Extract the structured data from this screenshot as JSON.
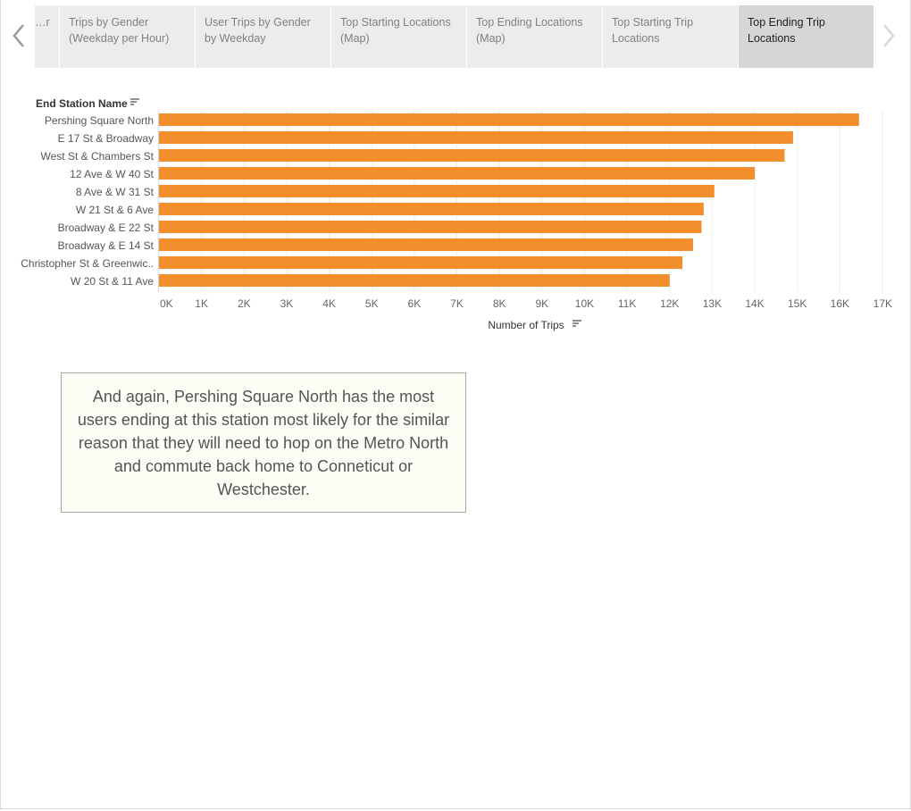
{
  "storypoints": {
    "tabs": [
      {
        "label": "…r",
        "selected": false
      },
      {
        "label": "Trips by Gender\n(Weekday per Hour)",
        "selected": false
      },
      {
        "label": "User Trips by Gender\nby Weekday",
        "selected": false
      },
      {
        "label": "Top Starting Locations\n(Map)",
        "selected": false
      },
      {
        "label": "Top Ending Locations\n(Map)",
        "selected": false
      },
      {
        "label": "Top Starting Trip\nLocations",
        "selected": false
      },
      {
        "label": "Top Ending Trip\nLocations",
        "selected": true
      }
    ],
    "prev_icon": "chevron-left-icon",
    "next_icon": "chevron-right-icon"
  },
  "chart_data": {
    "type": "bar",
    "orientation": "horizontal",
    "row_header": "End Station Name",
    "xlabel": "Number of Trips",
    "categories": [
      "Pershing Square North",
      "E 17 St & Broadway",
      "West St & Chambers St",
      "12 Ave & W 40 St",
      "8 Ave & W 31 St",
      "W 21 St & 6 Ave",
      "Broadway & E 22 St",
      "Broadway & E 14 St",
      "Christopher St & Greenwic..",
      "W 20 St & 11 Ave"
    ],
    "values": [
      16450,
      14900,
      14700,
      14000,
      13050,
      12800,
      12750,
      12550,
      12300,
      12000
    ],
    "xlim": [
      0,
      17000
    ],
    "xticks": [
      0,
      1000,
      2000,
      3000,
      4000,
      5000,
      6000,
      7000,
      8000,
      9000,
      10000,
      11000,
      12000,
      13000,
      14000,
      15000,
      16000,
      17000
    ],
    "xtick_labels": [
      "0K",
      "1K",
      "2K",
      "3K",
      "4K",
      "5K",
      "6K",
      "7K",
      "8K",
      "9K",
      "10K",
      "11K",
      "12K",
      "13K",
      "14K",
      "15K",
      "16K",
      "17K"
    ],
    "bar_color": "#f28e2b",
    "grid": true,
    "sort_icon": "sort-descending-icon"
  },
  "caption": {
    "text": "And again, Pershing Square North has the most users ending at this station most likely for the similar reason that they will need to hop on the Metro North and commute back home to Conneticut or Westchester."
  }
}
